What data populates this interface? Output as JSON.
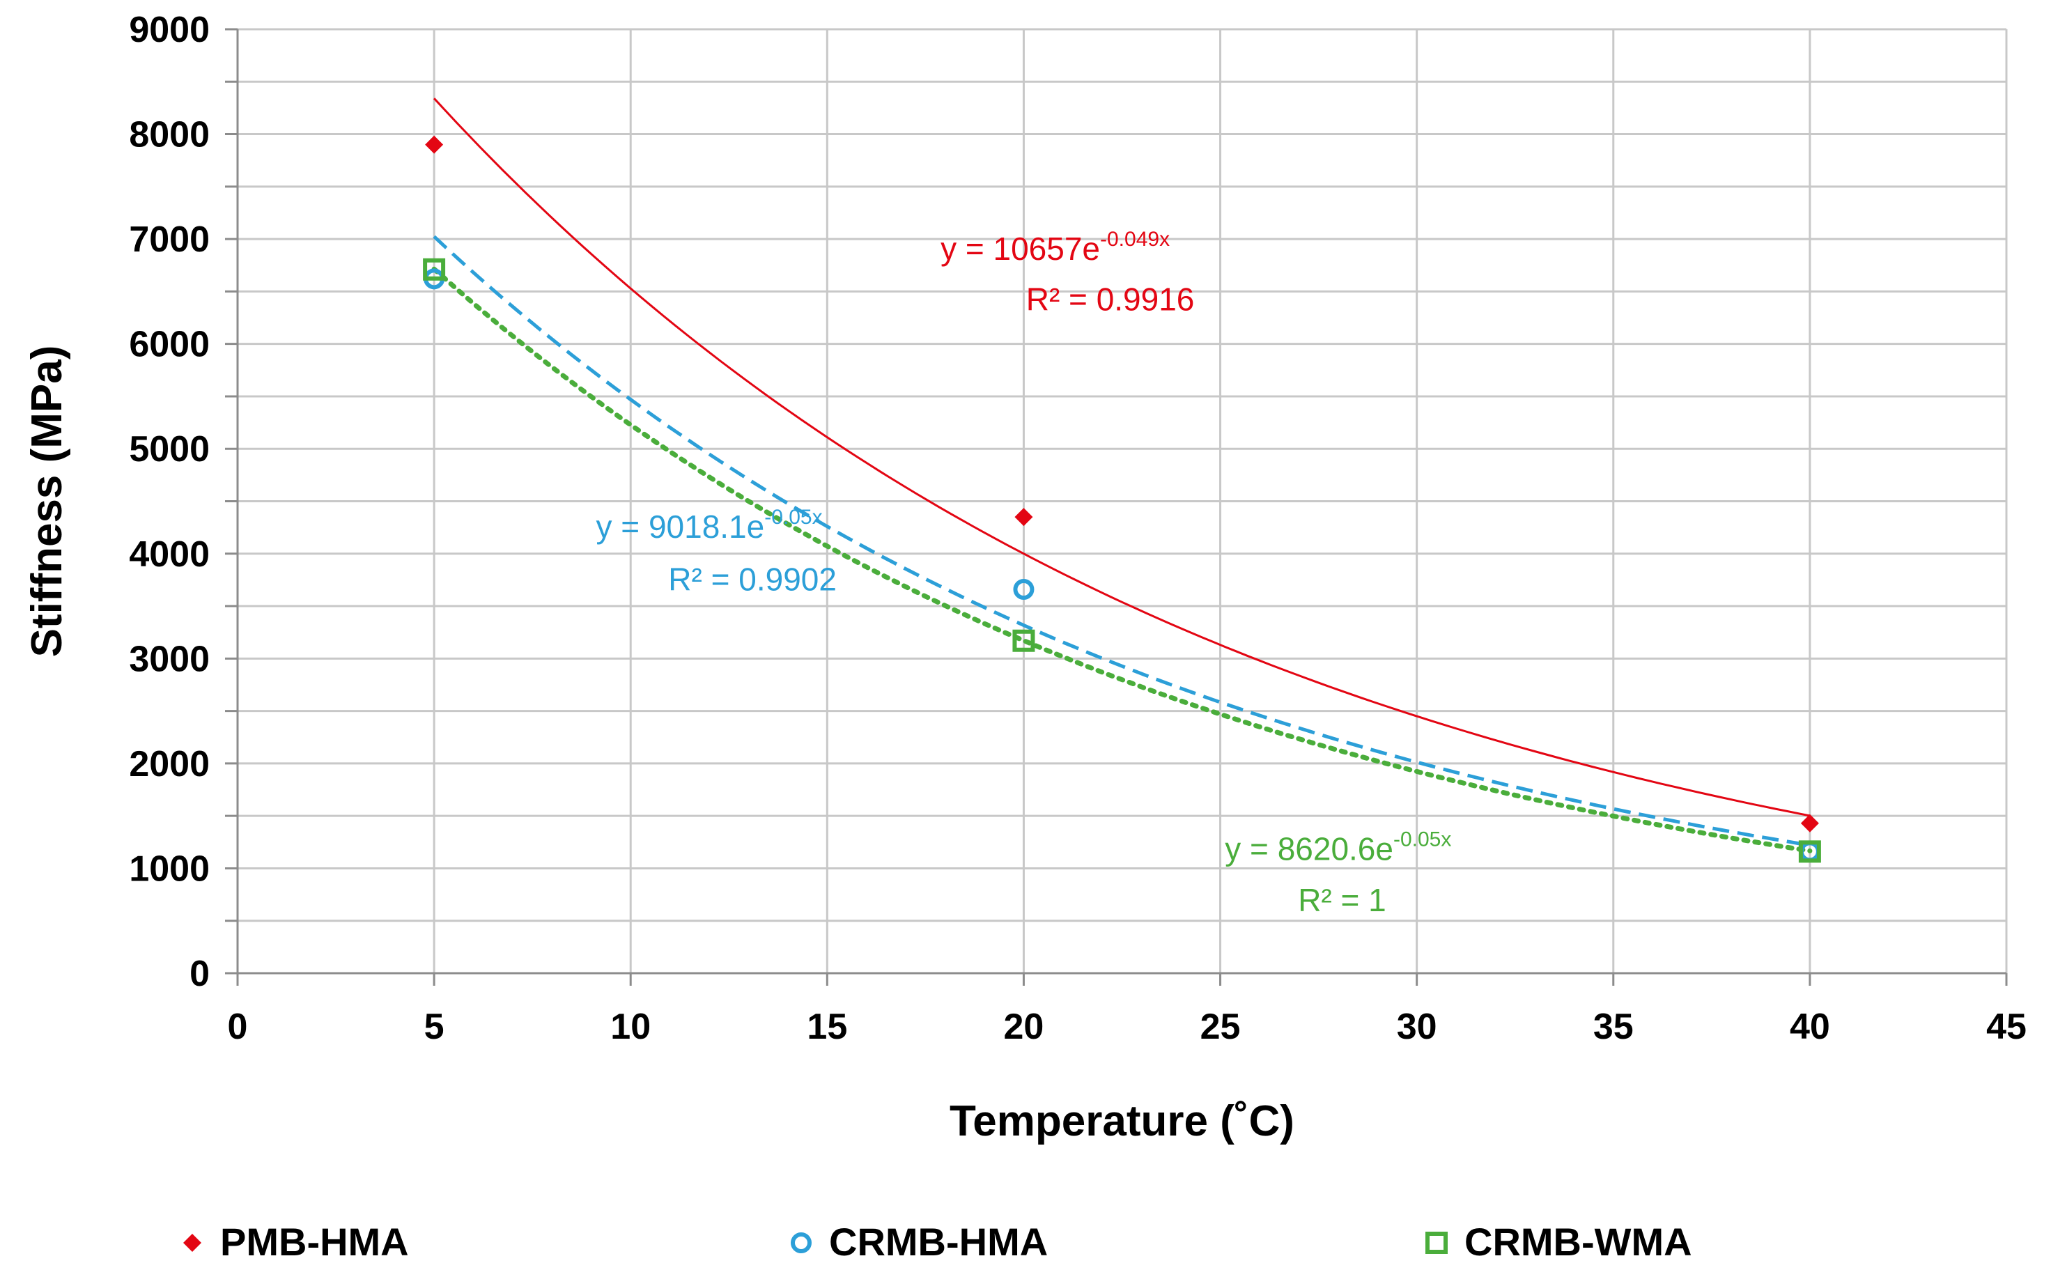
{
  "chart_data": {
    "type": "scatter",
    "title": "",
    "xlabel": "Temperature (˚C)",
    "ylabel": "Stiffness (MPa)",
    "xlim": [
      0,
      45
    ],
    "ylim": [
      0,
      9000
    ],
    "x_ticks": [
      "0",
      "5",
      "10",
      "15",
      "20",
      "25",
      "30",
      "35",
      "40",
      "45"
    ],
    "y_ticks": [
      "0",
      "1000",
      "2000",
      "3000",
      "4000",
      "5000",
      "6000",
      "7000",
      "8000",
      "9000"
    ],
    "grid": true,
    "legend_position": "bottom",
    "series": [
      {
        "name": "PMB-HMA",
        "color": "#e30613",
        "marker": "diamond",
        "x": [
          5,
          20,
          40
        ],
        "y": [
          7900,
          4350,
          1430
        ],
        "trendline": {
          "type": "exponential",
          "a": 10657,
          "b": -0.049,
          "style": "solid",
          "equation_prefix": "y = 10657e",
          "equation_exponent": "-0.049x",
          "r2_label": "R² = 0.9916"
        }
      },
      {
        "name": "CRMB-HMA",
        "color": "#2c9fd8",
        "marker": "circle",
        "x": [
          5,
          20,
          40
        ],
        "y": [
          6620,
          3660,
          1160
        ],
        "trendline": {
          "type": "exponential",
          "a": 9018.1,
          "b": -0.05,
          "style": "dashed",
          "equation_prefix": "y = 9018.1e",
          "equation_exponent": "-0.05x",
          "r2_label": "R² = 0.9902"
        }
      },
      {
        "name": "CRMB-WMA",
        "color": "#4aad3b",
        "marker": "square",
        "x": [
          5,
          20,
          40
        ],
        "y": [
          6710,
          3170,
          1160
        ],
        "trendline": {
          "type": "exponential",
          "a": 8620.6,
          "b": -0.05,
          "style": "dotted",
          "equation_prefix": "y = 8620.6e",
          "equation_exponent": "-0.05x",
          "r2_label": "R² = 1"
        }
      }
    ]
  }
}
